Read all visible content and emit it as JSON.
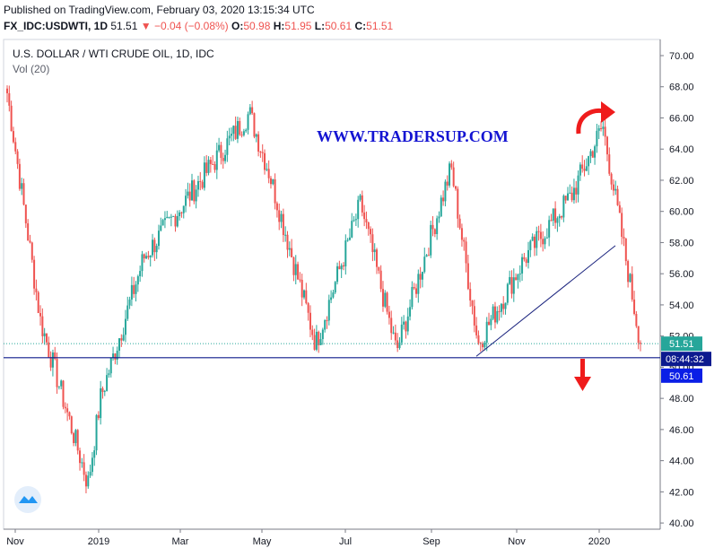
{
  "header": {
    "published": "Published on TradingView.com, February 03, 2020 13:15:34 UTC",
    "symbol": "FX_IDC:USDWTI",
    "interval": "1D",
    "last": "51.51",
    "change": "▼ −0.04 (−0.08%)",
    "o_label": "O:",
    "o_value": "50.98",
    "h_label": "H:",
    "h_value": "51.95",
    "l_label": "L:",
    "l_value": "50.61",
    "c_label": "C:",
    "c_value": "51.51"
  },
  "chart_data": {
    "type": "candlestick",
    "title": "U.S. DOLLAR / WTI CRUDE OIL, 1D, IDC",
    "subtitle": "Vol (20)",
    "watermark": "WWW.TRADERSUP.COM",
    "x_labels": [
      "Nov",
      "2019",
      "Mar",
      "May",
      "Jul",
      "Sep",
      "Nov",
      "2020"
    ],
    "y_ticks": [
      "40.00",
      "42.00",
      "44.00",
      "46.00",
      "48.00",
      "50.00",
      "52.00",
      "54.00",
      "56.00",
      "58.00",
      "60.00",
      "62.00",
      "64.00",
      "66.00",
      "68.00",
      "70.00"
    ],
    "ylim": [
      40,
      71
    ],
    "price_labels": {
      "last": "51.51",
      "countdown": "08:44:32",
      "support": "50.61"
    },
    "support_level": 50.61,
    "trendline": {
      "from": [
        "Sep",
        50.7
      ],
      "to": [
        "2020",
        57.8
      ]
    },
    "key_points": [
      {
        "x": "Nov",
        "y": 67.6
      },
      {
        "x": "2018-12 early",
        "y": 53.0
      },
      {
        "x": "2018-12 late",
        "y": 42.5
      },
      {
        "x": "2019",
        "y": 48.0
      },
      {
        "x": "Mar",
        "y": 57.0
      },
      {
        "x": "Apr",
        "y": 66.3
      },
      {
        "x": "May",
        "y": 62.5
      },
      {
        "x": "Jun",
        "y": 51.5
      },
      {
        "x": "Jul",
        "y": 60.5
      },
      {
        "x": "Aug",
        "y": 51.0
      },
      {
        "x": "Sep",
        "y": 62.8
      },
      {
        "x": "Oct",
        "y": 51.5
      },
      {
        "x": "Nov",
        "y": 57.0
      },
      {
        "x": "Dec",
        "y": 61.0
      },
      {
        "x": "2020",
        "y": 65.5
      },
      {
        "x": "Feb",
        "y": 51.51
      }
    ],
    "colors": {
      "up": "#26a69a",
      "down": "#ef5350",
      "trendline": "#1a237e",
      "support": "#0d1a8c",
      "watermark": "#1414d2",
      "arrow": "#ef1c1c",
      "last_bg": "#26a69a",
      "countdown_bg": "#0c1a8f",
      "support_bg": "#0a1ee6"
    }
  }
}
